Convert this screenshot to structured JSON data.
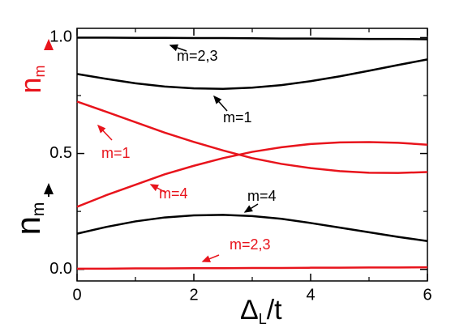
{
  "chart_data": {
    "type": "line",
    "x_label": {
      "main": "Δ",
      "sub": "L",
      "tail": "/t"
    },
    "y_label": {
      "main": "n",
      "sub": "m"
    },
    "y_label_red": {
      "main": "n",
      "sub": "m",
      "color": "#e8141c"
    },
    "xlim": [
      0,
      6
    ],
    "ylim": [
      -0.05,
      1.04
    ],
    "xticks": [
      0,
      2,
      4,
      6
    ],
    "xminor": [
      1,
      3,
      5
    ],
    "yticks": [
      {
        "value": 0,
        "label": "0.0"
      },
      {
        "value": 0.5,
        "label": "0.5"
      },
      {
        "value": 1,
        "label": "1.0"
      }
    ],
    "yminor": [
      0.25,
      0.75
    ],
    "x": [
      0,
      0.5,
      1,
      1.5,
      2,
      2.5,
      3,
      3.5,
      4,
      4.5,
      5,
      5.5,
      6
    ],
    "series": [
      {
        "color": "#000000",
        "values": [
          1.0,
          1.0,
          0.999,
          0.999,
          0.998,
          0.998,
          0.997,
          0.996,
          0.996,
          0.995,
          0.994,
          0.994,
          0.993
        ]
      },
      {
        "color": "#000000",
        "values": [
          0.843,
          0.822,
          0.803,
          0.789,
          0.781,
          0.779,
          0.784,
          0.795,
          0.812,
          0.833,
          0.857,
          0.882,
          0.906
        ]
      },
      {
        "color": "#e8141c",
        "values": [
          0.724,
          0.68,
          0.635,
          0.59,
          0.55,
          0.513,
          0.48,
          0.455,
          0.437,
          0.424,
          0.417,
          0.416,
          0.42
        ]
      },
      {
        "color": "#e8141c",
        "values": [
          0.27,
          0.32,
          0.365,
          0.41,
          0.447,
          0.48,
          0.507,
          0.527,
          0.541,
          0.548,
          0.549,
          0.546,
          0.538
        ]
      },
      {
        "color": "#000000",
        "values": [
          0.154,
          0.183,
          0.207,
          0.224,
          0.233,
          0.235,
          0.23,
          0.218,
          0.2,
          0.18,
          0.16,
          0.14,
          0.122
        ]
      },
      {
        "color": "#e8141c",
        "values": [
          0.003,
          0.003,
          0.004,
          0.004,
          0.005,
          0.005,
          0.006,
          0.006,
          0.007,
          0.007,
          0.008,
          0.008,
          0.009
        ]
      }
    ],
    "annotations": [
      {
        "text": "m=2,3",
        "color": "#000000"
      },
      {
        "text": "m=1",
        "color": "#000000"
      },
      {
        "text": "m=1",
        "color": "#e8141c"
      },
      {
        "text": "m=4",
        "color": "#e8141c"
      },
      {
        "text": "m=4",
        "color": "#000000"
      },
      {
        "text": "m=2,3",
        "color": "#e8141c"
      }
    ]
  }
}
